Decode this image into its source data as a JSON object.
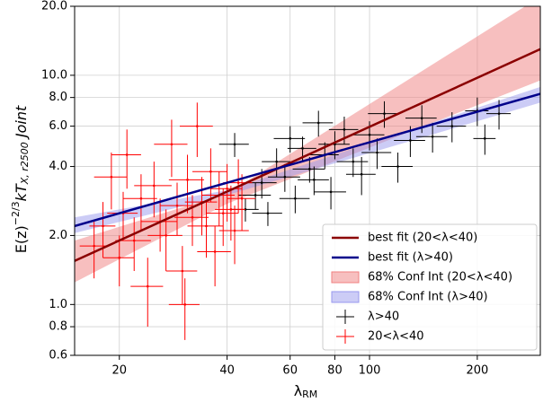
{
  "chart_data": {
    "type": "errorbar-scatter",
    "xscale": "log",
    "yscale": "log",
    "grid": true,
    "legend": "lower right",
    "x_label": [
      "λ",
      "RM"
    ],
    "y_label": [
      "E(z)",
      "−2/3",
      "kT",
      "X, r2500",
      " Joint"
    ],
    "xlim": [
      15,
      300
    ],
    "ylim": [
      0.6,
      20
    ],
    "xticks": [
      20,
      40,
      60,
      80,
      100,
      200
    ],
    "yticks": [
      0.6,
      0.8,
      {
        "value": 1,
        "label": "1.0"
      },
      {
        "value": 2,
        "label": "2.0"
      },
      {
        "value": 4,
        "label": "4.0"
      },
      {
        "value": 6,
        "label": "6.0"
      },
      {
        "value": 8,
        "label": "8.0"
      },
      {
        "value": 10,
        "label": "10.0"
      },
      {
        "value": 20,
        "label": "20.0"
      }
    ],
    "lines": [
      {
        "name": "best fit (20<λ<40)",
        "color": "#8b0000",
        "x": [
          15,
          300
        ],
        "values": [
          1.55,
          13
        ]
      },
      {
        "name": "best fit (λ>40)",
        "color": "#00008b",
        "x": [
          15,
          300
        ],
        "values": [
          2.2,
          8.3
        ]
      }
    ],
    "bands": [
      {
        "name": "68% Conf Int (20<λ<40)",
        "color": "#f08080",
        "x": [
          15,
          40,
          300
        ],
        "lower": [
          1.25,
          2.75,
          9.5
        ],
        "upper": [
          1.9,
          3.05,
          22
        ]
      },
      {
        "name": "68% Conf Int (λ>40)",
        "color": "#9999ee",
        "x": [
          15,
          40,
          300
        ],
        "lower": [
          2.05,
          3.0,
          7.6
        ],
        "upper": [
          2.4,
          3.15,
          8.9
        ]
      }
    ],
    "series": [
      {
        "name": "λ>40",
        "color": "#000000",
        "x": [
          42,
          45,
          48,
          50,
          52,
          55,
          58,
          60,
          62,
          65,
          68,
          70,
          72,
          75,
          78,
          80,
          85,
          90,
          95,
          100,
          105,
          110,
          120,
          130,
          140,
          150,
          170,
          200,
          210,
          230
        ],
        "values": [
          5.0,
          2.6,
          3.0,
          3.4,
          2.5,
          4.2,
          3.6,
          5.3,
          2.9,
          4.8,
          3.9,
          3.5,
          6.2,
          4.5,
          3.1,
          5.0,
          5.8,
          4.2,
          3.7,
          5.5,
          4.6,
          6.8,
          4.0,
          5.2,
          6.5,
          5.4,
          6.0,
          7.0,
          5.3,
          6.8
        ],
        "xerr": [
          4,
          4,
          5,
          5,
          5,
          5,
          6,
          6,
          6,
          6,
          7,
          7,
          7,
          7,
          8,
          8,
          8,
          9,
          9,
          10,
          10,
          11,
          12,
          13,
          14,
          15,
          16,
          15,
          15,
          18
        ],
        "yerr": [
          0.6,
          0.3,
          0.4,
          0.5,
          0.3,
          0.6,
          0.5,
          0.7,
          0.4,
          0.6,
          0.5,
          0.5,
          0.8,
          0.6,
          0.5,
          0.7,
          0.8,
          0.6,
          0.7,
          0.8,
          0.7,
          0.9,
          0.6,
          0.8,
          0.9,
          0.8,
          0.9,
          1.0,
          0.8,
          1.0
        ]
      },
      {
        "name": "20<λ<40",
        "color": "#ff0000",
        "x": [
          17,
          18,
          19,
          20,
          20.5,
          21,
          22,
          23,
          24,
          25,
          26,
          27,
          28,
          29,
          30,
          31,
          32,
          33,
          34,
          35,
          36,
          37,
          38,
          39,
          40,
          41,
          42,
          43,
          44,
          30.5
        ],
        "values": [
          1.8,
          2.2,
          3.6,
          1.6,
          2.5,
          4.5,
          1.9,
          2.9,
          1.2,
          3.3,
          2.3,
          2.0,
          5.0,
          2.7,
          1.4,
          3.5,
          2.4,
          6.0,
          2.8,
          2.2,
          3.8,
          1.7,
          3.0,
          2.5,
          3.2,
          2.6,
          2.1,
          3.4,
          2.9,
          1.0
        ],
        "xerr": [
          1.5,
          1.5,
          2,
          2,
          2,
          2,
          2.5,
          2.5,
          2.5,
          3,
          3,
          3,
          3,
          3,
          3,
          3.5,
          3.5,
          3.5,
          3.5,
          4,
          4,
          4,
          4,
          4,
          4,
          4,
          4,
          4,
          4,
          3
        ],
        "yerr": [
          0.5,
          0.6,
          1.0,
          0.4,
          0.6,
          1.3,
          0.5,
          0.8,
          0.4,
          0.9,
          0.6,
          0.6,
          1.4,
          0.7,
          0.4,
          1.0,
          0.6,
          1.6,
          0.8,
          0.6,
          1.0,
          0.5,
          0.8,
          0.7,
          0.9,
          0.7,
          0.6,
          0.9,
          0.8,
          0.3
        ]
      }
    ]
  }
}
